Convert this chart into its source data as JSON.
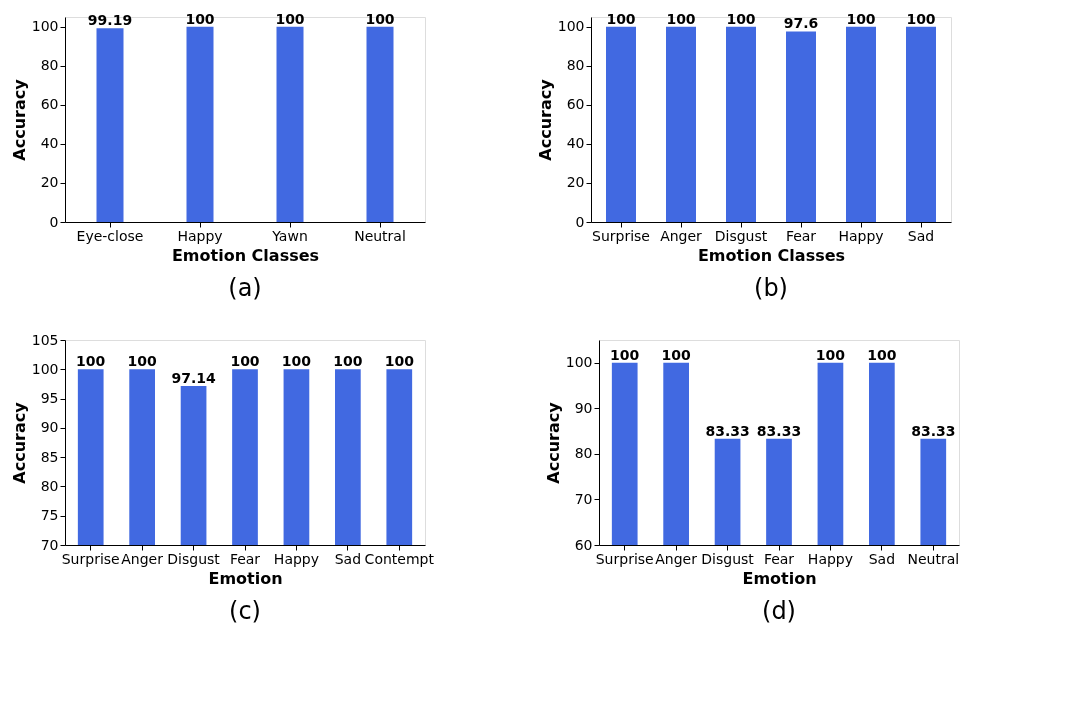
{
  "chart_data": [
    {
      "type": "bar",
      "categories": [
        "Eye-close",
        "Happy",
        "Yawn",
        "Neutral"
      ],
      "values": [
        99.19,
        100,
        100,
        100
      ],
      "color": "#4169e1",
      "xlabel": "Emotion Classes",
      "ylabel": "Accuracy",
      "ylim": [
        0,
        105
      ],
      "yticks": [
        0,
        20,
        40,
        60,
        80,
        100
      ],
      "data_labels": true,
      "grid": false,
      "annotations": [
        "(a)"
      ]
    },
    {
      "type": "bar",
      "categories": [
        "Surprise",
        "Anger",
        "Disgust",
        "Fear",
        "Happy",
        "Sad"
      ],
      "values": [
        100,
        100,
        100,
        97.6,
        100,
        100
      ],
      "color": "#4169e1",
      "xlabel": "Emotion Classes",
      "ylabel": "Accuracy",
      "ylim": [
        0,
        105
      ],
      "yticks": [
        0,
        20,
        40,
        60,
        80,
        100
      ],
      "data_labels": true,
      "grid": false,
      "annotations": [
        "(b)"
      ]
    },
    {
      "type": "bar",
      "categories": [
        "Surprise",
        "Anger",
        "Disgust",
        "Fear",
        "Happy",
        "Sad",
        "Contempt"
      ],
      "values": [
        100,
        100,
        97.14,
        100,
        100,
        100,
        100
      ],
      "color": "#4169e1",
      "xlabel": "Emotion",
      "ylabel": "Accuracy",
      "ylim": [
        70,
        105
      ],
      "yticks": [
        70,
        75,
        80,
        85,
        90,
        95,
        100,
        105
      ],
      "data_labels": true,
      "grid": false,
      "annotations": [
        "(c)"
      ]
    },
    {
      "type": "bar",
      "categories": [
        "Surprise",
        "Anger",
        "Disgust",
        "Fear",
        "Happy",
        "Sad",
        "Neutral"
      ],
      "values": [
        100,
        100,
        83.33,
        83.33,
        100,
        100,
        83.33
      ],
      "color": "#4169e1",
      "xlabel": "Emotion",
      "ylabel": "Accuracy",
      "ylim": [
        60,
        105
      ],
      "yticks": [
        60,
        70,
        80,
        90,
        100
      ],
      "data_labels": true,
      "grid": false,
      "annotations": [
        "(d)"
      ]
    }
  ]
}
